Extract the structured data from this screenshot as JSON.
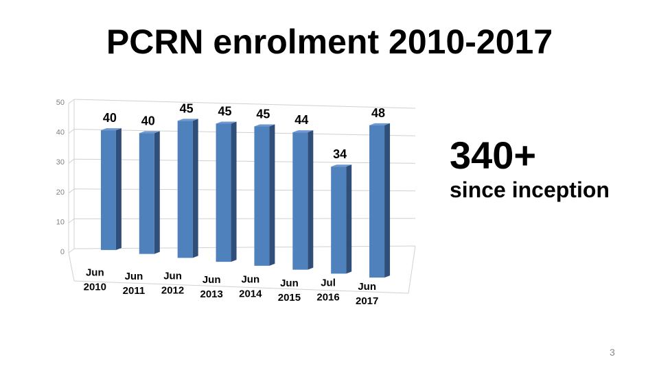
{
  "slide": {
    "title": "PCRN enrolment 2010-2017",
    "stat_value": "340+",
    "stat_caption": "since inception",
    "slide_number": "3"
  },
  "colors": {
    "bar_front": "#4f81bd",
    "bar_side": "#2f4f7a",
    "bar_top": "#6f98cf",
    "gridline": "#d0d0d0"
  },
  "chart_data": {
    "type": "bar",
    "categories": [
      [
        "Jun",
        "2010"
      ],
      [
        "Jun",
        "2011"
      ],
      [
        "Jun",
        "2012"
      ],
      [
        "Jun",
        "2013"
      ],
      [
        "Jun",
        "2014"
      ],
      [
        "Jun",
        "2015"
      ],
      [
        "Jul",
        "2016"
      ],
      [
        "Jun",
        "2017"
      ]
    ],
    "values": [
      40,
      40,
      45,
      45,
      45,
      44,
      34,
      48
    ],
    "ylim": [
      0,
      50
    ],
    "yticks": [
      0,
      10,
      20,
      30,
      40,
      50
    ],
    "grid": true,
    "legend": "none",
    "title": "",
    "xlabel": "",
    "ylabel": ""
  }
}
